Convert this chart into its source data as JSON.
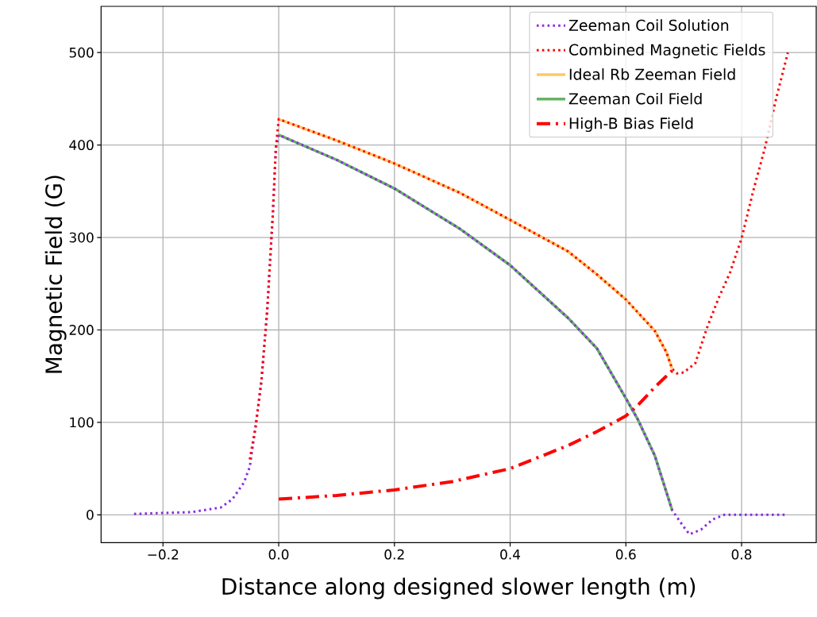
{
  "chart_data": {
    "type": "line",
    "xlabel": "Distance along designed slower length (m)",
    "ylabel": "Magnetic Field (G)",
    "xlim": [
      -0.307,
      0.929
    ],
    "ylim": [
      -30,
      550
    ],
    "xticks": [
      {
        "value": -0.2,
        "label": "−0.2"
      },
      {
        "value": 0,
        "label": "0.0"
      },
      {
        "value": 0.2,
        "label": "0.2"
      },
      {
        "value": 0.4,
        "label": "0.4"
      },
      {
        "value": 0.6,
        "label": "0.6"
      },
      {
        "value": 0.8,
        "label": "0.8"
      }
    ],
    "yticks": [
      0,
      100,
      200,
      300,
      400,
      500
    ],
    "grid": true,
    "legend": "top right",
    "series": [
      {
        "name": "Zeeman Coil Solution",
        "color": "#8a2be2",
        "line_style": "dotted",
        "x": [
          -0.25,
          -0.2,
          -0.15,
          -0.1,
          -0.08,
          -0.06,
          -0.05,
          -0.04,
          -0.03,
          -0.02,
          -0.01,
          -0.005,
          0,
          0.1,
          0.2,
          0.314,
          0.4,
          0.5,
          0.55,
          0.6,
          0.62,
          0.65,
          0.68,
          0.7,
          0.71,
          0.73,
          0.75,
          0.77,
          0.8,
          0.88
        ],
        "values": [
          1,
          2,
          3,
          8,
          17,
          35,
          52,
          95,
          144,
          220,
          327,
          396,
          411,
          384,
          353,
          309,
          270,
          213,
          180,
          126,
          104,
          64,
          5,
          -13,
          -21,
          -16,
          -5,
          0,
          0,
          0
        ]
      },
      {
        "name": "Combined Magnetic Fields",
        "color": "#ff0000",
        "line_style": "dotted",
        "x": [
          -0.05,
          -0.04,
          -0.03,
          -0.02,
          -0.01,
          -0.005,
          0,
          0.1,
          0.2,
          0.314,
          0.4,
          0.5,
          0.55,
          0.6,
          0.65,
          0.67,
          0.68,
          0.688,
          0.7,
          0.72,
          0.74,
          0.76,
          0.78,
          0.8,
          0.82,
          0.84,
          0.86,
          0.88
        ],
        "values": [
          60,
          95,
          144,
          220,
          327,
          396,
          428,
          405,
          380,
          348,
          319,
          285,
          260,
          233,
          199,
          176,
          158,
          153,
          154,
          164,
          202,
          234,
          262,
          299,
          350,
          396,
          451,
          500
        ]
      },
      {
        "name": "Ideal Rb Zeeman Field",
        "color": "#ffc864",
        "line_style": "solid",
        "x": [
          0,
          0.1,
          0.2,
          0.314,
          0.4,
          0.5,
          0.55,
          0.6,
          0.65,
          0.67,
          0.68
        ],
        "values": [
          428,
          405,
          380,
          348,
          319,
          285,
          260,
          233,
          199,
          176,
          158
        ]
      },
      {
        "name": "Zeeman Coil Field",
        "color": "#66b266",
        "line_style": "solid",
        "x": [
          0,
          0.1,
          0.2,
          0.314,
          0.4,
          0.5,
          0.55,
          0.6,
          0.62,
          0.65,
          0.68
        ],
        "values": [
          411,
          384,
          353,
          309,
          270,
          213,
          180,
          126,
          104,
          64,
          5
        ]
      },
      {
        "name": "High-B Bias Field",
        "color": "#ff0000",
        "line_style": "dashdot",
        "x": [
          0,
          0.1,
          0.2,
          0.3,
          0.4,
          0.5,
          0.55,
          0.6,
          0.62,
          0.65,
          0.68
        ],
        "values": [
          17,
          21,
          27,
          36,
          50,
          75,
          90,
          107,
          118,
          138,
          156
        ]
      }
    ]
  }
}
